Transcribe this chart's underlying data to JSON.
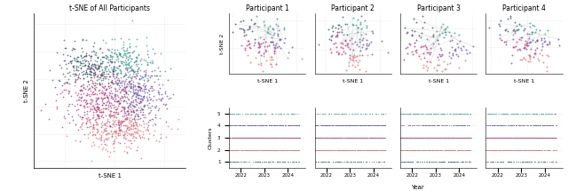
{
  "title_main": "t-SNE of All Participants",
  "participant_titles": [
    "Participant 1",
    "Participant 2",
    "Participant 3",
    "Participant 4"
  ],
  "cluster_colors": {
    "1": "#2d4a5a",
    "2": "#e06c6c",
    "3": "#b03070",
    "4": "#5c4a9e",
    "5": "#2a9980"
  },
  "tsne_xlabel": "t-SNE 1",
  "tsne_ylabel": "t-SNE 2",
  "clusters_ylabel": "Clusters",
  "year_xlabel": "Year",
  "year_ticks": [
    2022,
    2023,
    2024
  ],
  "cluster_yticks": [
    1,
    2,
    3,
    4,
    5
  ],
  "background_color": "#ffffff",
  "grid_color": "#cccccc",
  "point_size_main": 1.5,
  "point_size_sub": 2.0,
  "point_alpha": 0.7,
  "seed": 42
}
